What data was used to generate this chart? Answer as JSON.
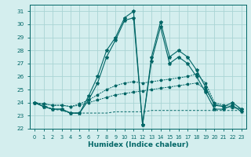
{
  "xlabel": "Humidex (Indice chaleur)",
  "x_values": [
    0,
    1,
    2,
    3,
    4,
    5,
    6,
    7,
    8,
    9,
    10,
    11,
    12,
    13,
    14,
    15,
    16,
    17,
    18,
    19,
    20,
    21,
    22,
    23
  ],
  "series1": [
    24.0,
    23.7,
    23.5,
    23.5,
    23.2,
    23.2,
    24.5,
    26.0,
    28.0,
    29.0,
    30.5,
    31.0,
    22.3,
    27.5,
    30.2,
    27.5,
    28.0,
    27.5,
    26.5,
    25.2,
    23.8,
    23.7,
    24.0,
    23.5
  ],
  "series2": [
    24.0,
    23.7,
    23.5,
    23.5,
    23.2,
    23.2,
    24.2,
    25.5,
    27.5,
    28.8,
    30.3,
    30.5,
    22.3,
    27.2,
    29.8,
    27.0,
    27.5,
    27.0,
    26.0,
    24.8,
    23.5,
    23.5,
    23.8,
    23.3
  ],
  "series3": [
    24.0,
    23.9,
    23.8,
    23.8,
    23.7,
    23.9,
    24.2,
    24.6,
    25.0,
    25.3,
    25.5,
    25.6,
    25.5,
    25.6,
    25.7,
    25.8,
    25.9,
    26.0,
    26.2,
    25.5,
    24.0,
    23.8,
    23.7,
    23.5
  ],
  "series4": [
    24.0,
    23.9,
    23.8,
    23.8,
    23.7,
    23.8,
    24.0,
    24.2,
    24.4,
    24.6,
    24.7,
    24.8,
    24.9,
    25.0,
    25.1,
    25.2,
    25.3,
    25.4,
    25.5,
    25.0,
    23.9,
    23.7,
    23.6,
    23.5
  ],
  "series5": [
    24.0,
    23.8,
    23.5,
    23.4,
    23.2,
    23.2,
    23.2,
    23.2,
    23.2,
    23.3,
    23.3,
    23.3,
    23.3,
    23.4,
    23.4,
    23.4,
    23.4,
    23.4,
    23.4,
    23.4,
    23.4,
    23.4,
    23.4,
    23.4
  ],
  "line_color": "#006666",
  "bg_color": "#d4eeee",
  "grid_color": "#aad4d4",
  "ylim": [
    22,
    31.5
  ],
  "yticks": [
    22,
    23,
    24,
    25,
    26,
    27,
    28,
    29,
    30,
    31
  ],
  "xlim": [
    -0.5,
    23.5
  ]
}
